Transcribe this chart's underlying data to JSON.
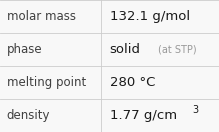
{
  "rows": [
    {
      "label": "molar mass",
      "value": "132.1 g/mol",
      "value_extra": null,
      "value_superscript": null
    },
    {
      "label": "phase",
      "value": "solid",
      "value_extra": "(at STP)",
      "value_superscript": null
    },
    {
      "label": "melting point",
      "value": "280 °C",
      "value_extra": null,
      "value_superscript": null
    },
    {
      "label": "density",
      "value": "1.77 g/cm",
      "value_superscript": "3",
      "value_extra": null
    }
  ],
  "bg_color": "#f8f8f8",
  "border_color": "#cccccc",
  "label_color": "#404040",
  "value_color": "#1a1a1a",
  "extra_color": "#999999",
  "col_split": 0.46,
  "label_fontsize": 8.5,
  "value_fontsize": 9.5,
  "extra_fontsize": 7.0,
  "super_fontsize": 7.0
}
